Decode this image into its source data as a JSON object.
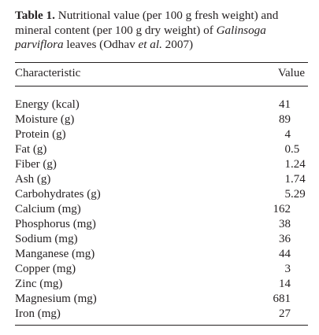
{
  "caption": {
    "label": "Table 1.",
    "text_a": "Nutritional value (per 100 g fresh weight) and mineral content (per 100 g dry weight) of ",
    "species": "Galinsoga parviflora",
    "text_b": " leaves (Odhav ",
    "etal": "et al.",
    "text_c": " 2007)"
  },
  "headers": {
    "characteristic": "Characteristic",
    "value": "Value"
  },
  "rows": [
    {
      "name": "Energy (kcal)",
      "value": "41"
    },
    {
      "name": "Moisture (g)",
      "value": "89"
    },
    {
      "name": "Protein (g)",
      "value": "4"
    },
    {
      "name": "Fat (g)",
      "value": "0.5"
    },
    {
      "name": "Fiber (g)",
      "value": "1.24"
    },
    {
      "name": "Ash (g)",
      "value": "1.74"
    },
    {
      "name": "Carbohydrates (g)",
      "value": "5.29"
    },
    {
      "name": "Calcium (mg)",
      "value": "162"
    },
    {
      "name": "Phosphorus (mg)",
      "value": "38"
    },
    {
      "name": "Sodium (mg)",
      "value": "36"
    },
    {
      "name": "Manganese (mg)",
      "value": "44"
    },
    {
      "name": "Copper (mg)",
      "value": "3"
    },
    {
      "name": "Zinc (mg)",
      "value": "14"
    },
    {
      "name": "Magnesium (mg)",
      "value": "681"
    },
    {
      "name": "Iron (mg)",
      "value": "27"
    }
  ]
}
